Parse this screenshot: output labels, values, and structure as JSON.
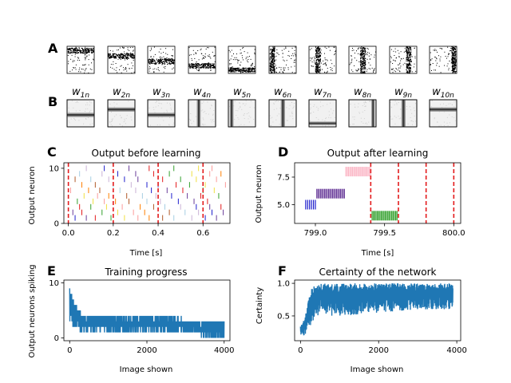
{
  "figure": {
    "panel_letters": [
      "A",
      "B",
      "C",
      "D",
      "E",
      "F"
    ],
    "weight_labels": [
      {
        "base": "w",
        "sub": "1n"
      },
      {
        "base": "w",
        "sub": "2n"
      },
      {
        "base": "w",
        "sub": "3n"
      },
      {
        "base": "w",
        "sub": "4n"
      },
      {
        "base": "w",
        "sub": "5n"
      },
      {
        "base": "w",
        "sub": "6n"
      },
      {
        "base": "w",
        "sub": "7n"
      },
      {
        "base": "w",
        "sub": "8n"
      },
      {
        "base": "w",
        "sub": "9n"
      },
      {
        "base": "w",
        "sub": "10n"
      }
    ],
    "input_patterns": [
      "h-bar-top",
      "h-bar-upper",
      "h-bar-middle",
      "h-bar-lower",
      "h-bar-bottom",
      "v-bar-left",
      "v-bar-left-center",
      "v-bar-center",
      "v-bar-right-center",
      "v-bar-right"
    ],
    "weight_patterns": [
      "h-bar-middle",
      "h-bar-upper",
      "h-bar-middle",
      "v-bar-center-left",
      "v-bar-left",
      "v-bar-center",
      "h-bar-bottom",
      "v-bar-right",
      "v-bar-center",
      "h-bar-upper"
    ]
  },
  "chart_data": [
    {
      "id": "C",
      "type": "scatter",
      "title": "Output before learning",
      "xlabel": "Time [s]",
      "ylabel": "Output neuron",
      "xlim": [
        -0.02,
        0.72
      ],
      "ylim": [
        0,
        11
      ],
      "xticks": [
        "0.0",
        "0.2",
        "0.4",
        "0.6"
      ],
      "xtick_values": [
        0.0,
        0.2,
        0.4,
        0.6
      ],
      "yticks": [
        "0",
        "10"
      ],
      "ytick_values": [
        0,
        10
      ],
      "vlines": [
        0.0,
        0.2,
        0.4,
        0.6
      ],
      "vline_color": "#e31a1c",
      "spike_colors": [
        "#1f1fcc",
        "#6a3d9a",
        "#e31a1c",
        "#33a02c",
        "#f0e040",
        "#fb9a99",
        "#ff7f00",
        "#b15928",
        "#a6cee3",
        "#cab2d6"
      ],
      "series": [
        {
          "neuron": 1,
          "times": [
            0.03,
            0.08,
            0.12,
            0.19,
            0.25,
            0.31,
            0.36,
            0.42,
            0.47,
            0.55,
            0.61,
            0.66
          ]
        },
        {
          "neuron": 2,
          "times": [
            0.02,
            0.06,
            0.15,
            0.22,
            0.29,
            0.34,
            0.45,
            0.52,
            0.58,
            0.64,
            0.69
          ]
        },
        {
          "neuron": 3,
          "times": [
            0.05,
            0.1,
            0.17,
            0.24,
            0.32,
            0.38,
            0.43,
            0.5,
            0.57,
            0.63,
            0.68
          ]
        },
        {
          "neuron": 4,
          "times": [
            0.04,
            0.11,
            0.16,
            0.21,
            0.27,
            0.35,
            0.41,
            0.49,
            0.56,
            0.62
          ]
        },
        {
          "neuron": 5,
          "times": [
            0.07,
            0.13,
            0.18,
            0.26,
            0.33,
            0.39,
            0.46,
            0.53,
            0.59,
            0.67
          ]
        },
        {
          "neuron": 6,
          "times": [
            0.01,
            0.09,
            0.14,
            0.23,
            0.3,
            0.37,
            0.44,
            0.51,
            0.6,
            0.65
          ]
        },
        {
          "neuron": 7,
          "times": [
            0.06,
            0.12,
            0.2,
            0.28,
            0.35,
            0.4,
            0.48,
            0.54,
            0.61,
            0.7
          ]
        },
        {
          "neuron": 8,
          "times": [
            0.03,
            0.1,
            0.18,
            0.25,
            0.31,
            0.42,
            0.5,
            0.57,
            0.66
          ]
        },
        {
          "neuron": 9,
          "times": [
            0.05,
            0.15,
            0.22,
            0.3,
            0.38,
            0.45,
            0.55,
            0.63,
            0.68
          ]
        },
        {
          "neuron": 10,
          "times": [
            0.08,
            0.16,
            0.27,
            0.36,
            0.47,
            0.58,
            0.64
          ]
        }
      ]
    },
    {
      "id": "D",
      "type": "scatter",
      "title": "Output after learning",
      "xlabel": "Time [s]",
      "ylabel": "Output neuron",
      "xlim": [
        798.85,
        800.05
      ],
      "ylim": [
        3.3,
        8.8
      ],
      "xticks": [
        "799.0",
        "799.5",
        "800.0"
      ],
      "xtick_values": [
        799.0,
        799.5,
        800.0
      ],
      "yticks": [
        "5.0",
        "7.5"
      ],
      "ytick_values": [
        5.0,
        7.5
      ],
      "vlines": [
        799.4,
        799.6,
        799.8,
        800.0
      ],
      "vline_color": "#e31a1c",
      "series": [
        {
          "neuron": 5,
          "color": "#1f1fcc",
          "t_start": 798.93,
          "t_end": 799.0,
          "count": 6
        },
        {
          "neuron": 6,
          "color": "#6a3d9a",
          "t_start": 799.01,
          "t_end": 799.21,
          "count": 22
        },
        {
          "neuron": 8,
          "color": "#fbb4c4",
          "t_start": 799.22,
          "t_end": 799.4,
          "count": 20
        },
        {
          "neuron": 4,
          "color": "#33a02c",
          "t_start": 799.41,
          "t_end": 799.59,
          "count": 20
        }
      ]
    },
    {
      "id": "E",
      "type": "line",
      "title": "Training progress",
      "xlabel": "Image shown",
      "ylabel": "Output neurons spiking",
      "xlim": [
        -150,
        4150
      ],
      "ylim": [
        -0.5,
        10.5
      ],
      "xticks": [
        "0",
        "2000",
        "4000"
      ],
      "xtick_values": [
        0,
        2000,
        4000
      ],
      "yticks": [
        "0",
        "10"
      ],
      "ytick_values": [
        0,
        10
      ],
      "color": "#1f77b4",
      "x_range": [
        0,
        4000
      ],
      "envelope": [
        {
          "x": 0,
          "low": 3,
          "high": 10
        },
        {
          "x": 100,
          "low": 2,
          "high": 7
        },
        {
          "x": 250,
          "low": 1,
          "high": 5
        },
        {
          "x": 400,
          "low": 1,
          "high": 4
        },
        {
          "x": 800,
          "low": 1,
          "high": 4
        },
        {
          "x": 1500,
          "low": 1,
          "high": 4
        },
        {
          "x": 2500,
          "low": 1,
          "high": 4
        },
        {
          "x": 3300,
          "low": 1,
          "high": 3
        },
        {
          "x": 3400,
          "low": 0,
          "high": 3
        },
        {
          "x": 4000,
          "low": 0,
          "high": 3
        }
      ]
    },
    {
      "id": "F",
      "type": "line",
      "title": "Certainty of the network",
      "xlabel": "Image shown",
      "ylabel": "Certainty",
      "xlim": [
        -150,
        4100
      ],
      "ylim": [
        0.12,
        1.05
      ],
      "xticks": [
        "0",
        "2000",
        "4000"
      ],
      "xtick_values": [
        0,
        2000,
        4000
      ],
      "yticks": [
        "0.5",
        "1.0"
      ],
      "ytick_values": [
        0.5,
        1.0
      ],
      "color": "#1f77b4",
      "x_range": [
        0,
        3900
      ],
      "envelope": [
        {
          "x": 0,
          "low": 0.18,
          "high": 0.35
        },
        {
          "x": 100,
          "low": 0.2,
          "high": 0.45
        },
        {
          "x": 200,
          "low": 0.3,
          "high": 0.75
        },
        {
          "x": 300,
          "low": 0.4,
          "high": 0.95
        },
        {
          "x": 400,
          "low": 0.5,
          "high": 1.0
        },
        {
          "x": 1000,
          "low": 0.5,
          "high": 1.0
        },
        {
          "x": 2000,
          "low": 0.55,
          "high": 1.0
        },
        {
          "x": 3000,
          "low": 0.6,
          "high": 1.0
        },
        {
          "x": 3900,
          "low": 0.6,
          "high": 1.0
        }
      ]
    }
  ]
}
